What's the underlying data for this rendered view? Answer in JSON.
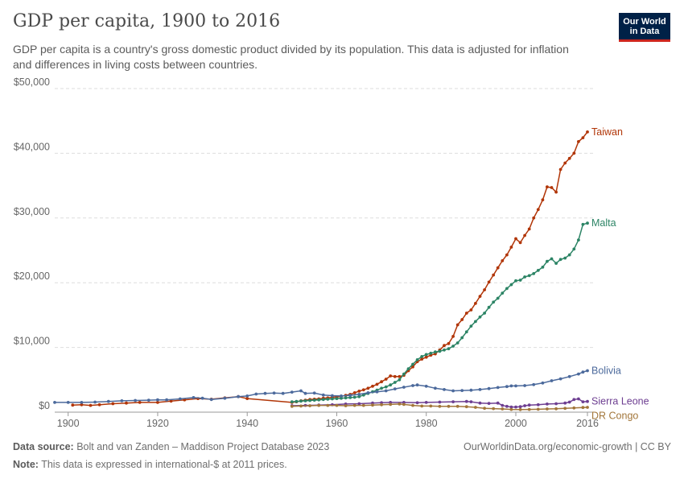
{
  "header": {
    "title": "GDP per capita, 1900 to 2016",
    "subtitle": "GDP per capita is a country's gross domestic product divided by its population. This data is adjusted for inflation and differences in living costs between countries."
  },
  "logo": {
    "line1": "Our World",
    "line2": "in Data"
  },
  "footer": {
    "source_label": "Data source:",
    "source_text": "Bolt and van Zanden – Maddison Project Database 2023",
    "note_label": "Note:",
    "note_text": "This data is expressed in international-$ at 2011 prices.",
    "link": "OurWorldinData.org/economic-growth | CC BY"
  },
  "chart_data": {
    "type": "line",
    "xlim": [
      1897,
      2016
    ],
    "ylim": [
      0,
      50000
    ],
    "x_ticks": [
      1900,
      1920,
      1940,
      1960,
      1980,
      2000,
      2016
    ],
    "x_tick_labels": [
      "1900",
      "1920",
      "1940",
      "1960",
      "1980",
      "2000",
      "2016"
    ],
    "y_ticks": [
      0,
      10000,
      20000,
      30000,
      40000,
      50000
    ],
    "y_tick_labels": [
      "$0",
      "$10,000",
      "$20,000",
      "$30,000",
      "$40,000",
      "$50,000"
    ],
    "grid": true,
    "legend": "inline labels at line ends (right)",
    "series": [
      {
        "name": "Taiwan",
        "color": "#b13507",
        "points": [
          [
            1901,
            1100
          ],
          [
            1903,
            1150
          ],
          [
            1905,
            1050
          ],
          [
            1907,
            1150
          ],
          [
            1910,
            1300
          ],
          [
            1913,
            1400
          ],
          [
            1916,
            1500
          ],
          [
            1920,
            1500
          ],
          [
            1923,
            1700
          ],
          [
            1926,
            1900
          ],
          [
            1929,
            2100
          ],
          [
            1932,
            2000
          ],
          [
            1935,
            2200
          ],
          [
            1938,
            2400
          ],
          [
            1940,
            2100
          ],
          [
            1950,
            1500
          ],
          [
            1951,
            1600
          ],
          [
            1952,
            1750
          ],
          [
            1953,
            1850
          ],
          [
            1954,
            1950
          ],
          [
            1955,
            2000
          ],
          [
            1956,
            2050
          ],
          [
            1957,
            2150
          ],
          [
            1958,
            2200
          ],
          [
            1959,
            2300
          ],
          [
            1960,
            2350
          ],
          [
            1961,
            2450
          ],
          [
            1962,
            2600
          ],
          [
            1963,
            2750
          ],
          [
            1964,
            3000
          ],
          [
            1965,
            3250
          ],
          [
            1966,
            3450
          ],
          [
            1967,
            3700
          ],
          [
            1968,
            4000
          ],
          [
            1969,
            4300
          ],
          [
            1970,
            4700
          ],
          [
            1971,
            5100
          ],
          [
            1972,
            5600
          ],
          [
            1973,
            5500
          ],
          [
            1974,
            5500
          ],
          [
            1975,
            5700
          ],
          [
            1976,
            6400
          ],
          [
            1977,
            7000
          ],
          [
            1978,
            7800
          ],
          [
            1979,
            8200
          ],
          [
            1980,
            8500
          ],
          [
            1981,
            8800
          ],
          [
            1982,
            9000
          ],
          [
            1983,
            9600
          ],
          [
            1984,
            10300
          ],
          [
            1985,
            10600
          ],
          [
            1986,
            11700
          ],
          [
            1987,
            13500
          ],
          [
            1988,
            14300
          ],
          [
            1989,
            15300
          ],
          [
            1990,
            15800
          ],
          [
            1991,
            16800
          ],
          [
            1992,
            17900
          ],
          [
            1993,
            18900
          ],
          [
            1994,
            20100
          ],
          [
            1995,
            21200
          ],
          [
            1996,
            22300
          ],
          [
            1997,
            23400
          ],
          [
            1998,
            24300
          ],
          [
            1999,
            25500
          ],
          [
            2000,
            26800
          ],
          [
            2001,
            26200
          ],
          [
            2002,
            27300
          ],
          [
            2003,
            28300
          ],
          [
            2004,
            30000
          ],
          [
            2005,
            31300
          ],
          [
            2006,
            32800
          ],
          [
            2007,
            34800
          ],
          [
            2008,
            34700
          ],
          [
            2009,
            34000
          ],
          [
            2010,
            37500
          ],
          [
            2011,
            38500
          ],
          [
            2012,
            39200
          ],
          [
            2013,
            40000
          ],
          [
            2014,
            41800
          ],
          [
            2015,
            42400
          ],
          [
            2016,
            43300
          ]
        ]
      },
      {
        "name": "Malta",
        "color": "#2c8465",
        "points": [
          [
            1950,
            1600
          ],
          [
            1951,
            1650
          ],
          [
            1952,
            1700
          ],
          [
            1953,
            1750
          ],
          [
            1954,
            1800
          ],
          [
            1955,
            1850
          ],
          [
            1956,
            1900
          ],
          [
            1957,
            1950
          ],
          [
            1958,
            2000
          ],
          [
            1959,
            2050
          ],
          [
            1960,
            2100
          ],
          [
            1961,
            2150
          ],
          [
            1962,
            2200
          ],
          [
            1963,
            2250
          ],
          [
            1964,
            2300
          ],
          [
            1965,
            2400
          ],
          [
            1966,
            2650
          ],
          [
            1967,
            2900
          ],
          [
            1968,
            3150
          ],
          [
            1969,
            3400
          ],
          [
            1970,
            3700
          ],
          [
            1971,
            3900
          ],
          [
            1972,
            4200
          ],
          [
            1973,
            4600
          ],
          [
            1974,
            5000
          ],
          [
            1975,
            5900
          ],
          [
            1976,
            6700
          ],
          [
            1977,
            7400
          ],
          [
            1978,
            8100
          ],
          [
            1979,
            8600
          ],
          [
            1980,
            8900
          ],
          [
            1981,
            9100
          ],
          [
            1982,
            9300
          ],
          [
            1983,
            9400
          ],
          [
            1984,
            9600
          ],
          [
            1985,
            9800
          ],
          [
            1986,
            10200
          ],
          [
            1987,
            10700
          ],
          [
            1988,
            11500
          ],
          [
            1989,
            12400
          ],
          [
            1990,
            13300
          ],
          [
            1991,
            14000
          ],
          [
            1992,
            14700
          ],
          [
            1993,
            15300
          ],
          [
            1994,
            16200
          ],
          [
            1995,
            17000
          ],
          [
            1996,
            17600
          ],
          [
            1997,
            18400
          ],
          [
            1998,
            19100
          ],
          [
            1999,
            19700
          ],
          [
            2000,
            20300
          ],
          [
            2001,
            20400
          ],
          [
            2002,
            20900
          ],
          [
            2003,
            21100
          ],
          [
            2004,
            21400
          ],
          [
            2005,
            21900
          ],
          [
            2006,
            22400
          ],
          [
            2007,
            23300
          ],
          [
            2008,
            23700
          ],
          [
            2009,
            23000
          ],
          [
            2010,
            23600
          ],
          [
            2011,
            23800
          ],
          [
            2012,
            24300
          ],
          [
            2013,
            25200
          ],
          [
            2014,
            26600
          ],
          [
            2015,
            29000
          ],
          [
            2016,
            29200
          ]
        ]
      },
      {
        "name": "Bolivia",
        "color": "#4c6a9c",
        "points": [
          [
            1897,
            1500
          ],
          [
            1900,
            1500
          ],
          [
            1903,
            1500
          ],
          [
            1906,
            1550
          ],
          [
            1909,
            1650
          ],
          [
            1912,
            1750
          ],
          [
            1915,
            1800
          ],
          [
            1918,
            1850
          ],
          [
            1920,
            1900
          ],
          [
            1922,
            1900
          ],
          [
            1925,
            2050
          ],
          [
            1928,
            2250
          ],
          [
            1930,
            2150
          ],
          [
            1932,
            1950
          ],
          [
            1935,
            2150
          ],
          [
            1938,
            2400
          ],
          [
            1940,
            2500
          ],
          [
            1942,
            2800
          ],
          [
            1944,
            2900
          ],
          [
            1946,
            2950
          ],
          [
            1948,
            2900
          ],
          [
            1950,
            3100
          ],
          [
            1952,
            3300
          ],
          [
            1953,
            2900
          ],
          [
            1955,
            2950
          ],
          [
            1957,
            2650
          ],
          [
            1959,
            2550
          ],
          [
            1961,
            2500
          ],
          [
            1963,
            2600
          ],
          [
            1965,
            2750
          ],
          [
            1967,
            3000
          ],
          [
            1969,
            3150
          ],
          [
            1971,
            3300
          ],
          [
            1973,
            3600
          ],
          [
            1975,
            3850
          ],
          [
            1977,
            4100
          ],
          [
            1978,
            4200
          ],
          [
            1980,
            4000
          ],
          [
            1982,
            3700
          ],
          [
            1984,
            3500
          ],
          [
            1986,
            3300
          ],
          [
            1988,
            3350
          ],
          [
            1990,
            3400
          ],
          [
            1992,
            3500
          ],
          [
            1994,
            3650
          ],
          [
            1996,
            3800
          ],
          [
            1998,
            3950
          ],
          [
            1999,
            4050
          ],
          [
            2000,
            4050
          ],
          [
            2002,
            4100
          ],
          [
            2004,
            4250
          ],
          [
            2006,
            4500
          ],
          [
            2008,
            4850
          ],
          [
            2010,
            5150
          ],
          [
            2012,
            5500
          ],
          [
            2014,
            5900
          ],
          [
            2015,
            6200
          ],
          [
            2016,
            6400
          ]
        ]
      },
      {
        "name": "Sierra Leone",
        "color": "#6d3e91",
        "points": [
          [
            1950,
            1000
          ],
          [
            1953,
            1050
          ],
          [
            1956,
            1100
          ],
          [
            1959,
            1150
          ],
          [
            1962,
            1250
          ],
          [
            1965,
            1300
          ],
          [
            1968,
            1400
          ],
          [
            1970,
            1450
          ],
          [
            1972,
            1500
          ],
          [
            1975,
            1500
          ],
          [
            1978,
            1450
          ],
          [
            1980,
            1500
          ],
          [
            1983,
            1550
          ],
          [
            1986,
            1600
          ],
          [
            1989,
            1650
          ],
          [
            1990,
            1600
          ],
          [
            1992,
            1400
          ],
          [
            1994,
            1350
          ],
          [
            1996,
            1400
          ],
          [
            1997,
            1050
          ],
          [
            1998,
            900
          ],
          [
            1999,
            800
          ],
          [
            2000,
            800
          ],
          [
            2001,
            850
          ],
          [
            2002,
            1000
          ],
          [
            2003,
            1100
          ],
          [
            2005,
            1150
          ],
          [
            2007,
            1250
          ],
          [
            2009,
            1300
          ],
          [
            2011,
            1400
          ],
          [
            2012,
            1550
          ],
          [
            2013,
            1950
          ],
          [
            2014,
            2050
          ],
          [
            2015,
            1600
          ],
          [
            2016,
            1650
          ]
        ]
      },
      {
        "name": "DR Congo",
        "color": "#a2763a",
        "points": [
          [
            1950,
            900
          ],
          [
            1952,
            950
          ],
          [
            1954,
            1000
          ],
          [
            1956,
            1050
          ],
          [
            1958,
            1050
          ],
          [
            1960,
            1050
          ],
          [
            1962,
            1000
          ],
          [
            1964,
            1050
          ],
          [
            1966,
            1050
          ],
          [
            1968,
            1100
          ],
          [
            1970,
            1150
          ],
          [
            1972,
            1200
          ],
          [
            1974,
            1250
          ],
          [
            1975,
            1200
          ],
          [
            1977,
            1050
          ],
          [
            1979,
            950
          ],
          [
            1981,
            950
          ],
          [
            1983,
            900
          ],
          [
            1985,
            900
          ],
          [
            1987,
            900
          ],
          [
            1989,
            850
          ],
          [
            1991,
            750
          ],
          [
            1993,
            600
          ],
          [
            1995,
            550
          ],
          [
            1997,
            500
          ],
          [
            1999,
            420
          ],
          [
            2001,
            400
          ],
          [
            2003,
            420
          ],
          [
            2005,
            450
          ],
          [
            2007,
            500
          ],
          [
            2009,
            520
          ],
          [
            2011,
            580
          ],
          [
            2013,
            650
          ],
          [
            2015,
            720
          ],
          [
            2016,
            750
          ]
        ]
      }
    ]
  }
}
